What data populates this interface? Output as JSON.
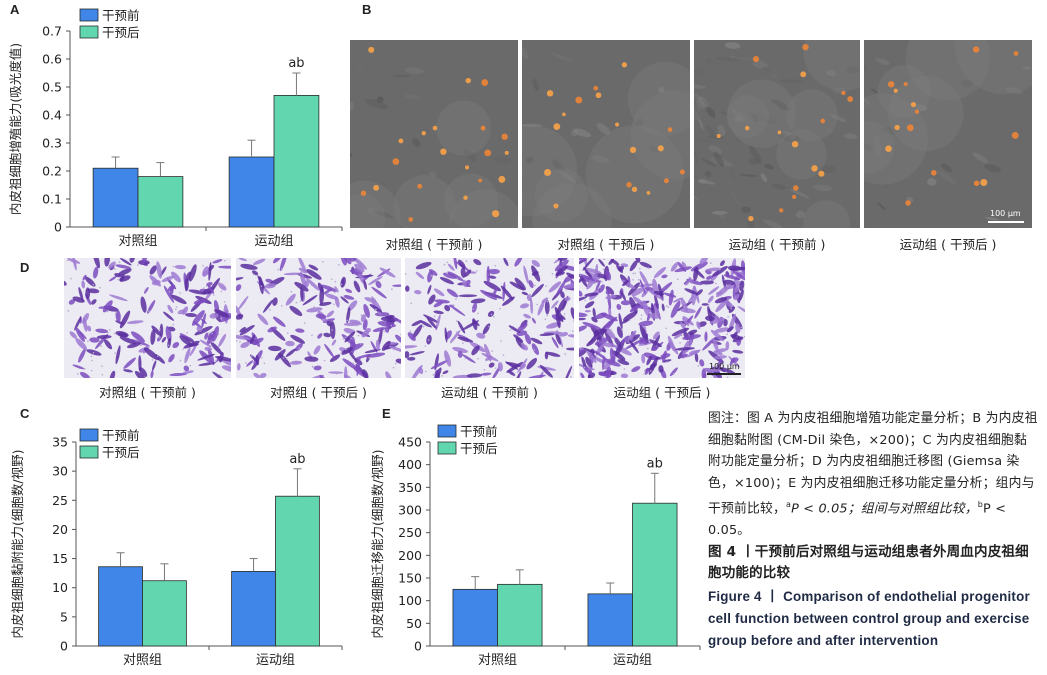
{
  "panels": {
    "a": {
      "letter": "A"
    },
    "b": {
      "letter": "B",
      "tiles": [
        {
          "label": "对照组 ( 干预前 )"
        },
        {
          "label": "对照组 ( 干预后 )"
        },
        {
          "label": "运动组 ( 干预前 )"
        },
        {
          "label": "运动组 ( 干预后 )"
        }
      ],
      "scale_bar": "100 μm"
    },
    "c": {
      "letter": "C"
    },
    "d": {
      "letter": "D",
      "tiles": [
        {
          "label": "对照组 ( 干预前 )"
        },
        {
          "label": "对照组 ( 干预后 )"
        },
        {
          "label": "运动组 ( 干预前 )"
        },
        {
          "label": "运动组 ( 干预后 )"
        }
      ],
      "scale_bar": "100 μm"
    },
    "e": {
      "letter": "E"
    }
  },
  "colors": {
    "before": "#3f86e8",
    "after": "#62d6ae",
    "bar_edge": "#2b2b2b",
    "axis": "#555555"
  },
  "chart_data": [
    {
      "id": "A",
      "type": "bar",
      "categories": [
        "对照组",
        "运动组"
      ],
      "series": [
        {
          "name": "干预前",
          "values": [
            0.21,
            0.25
          ],
          "errors": [
            0.04,
            0.06
          ]
        },
        {
          "name": "干预后",
          "values": [
            0.18,
            0.47
          ],
          "errors": [
            0.05,
            0.08
          ]
        }
      ],
      "ylabel": "内皮祖细胞增殖能力(吸光度值)",
      "ylim": [
        0,
        0.7
      ],
      "yticks": [
        "0",
        "0.1",
        "0.2",
        "0.3",
        "0.4",
        "0.5",
        "0.6",
        "0.7"
      ],
      "annotations": [
        {
          "category": "运动组",
          "series": "干预后",
          "text": "ab"
        }
      ],
      "legend": "top-left",
      "grid": false
    },
    {
      "id": "C",
      "type": "bar",
      "categories": [
        "对照组",
        "运动组"
      ],
      "series": [
        {
          "name": "干预前",
          "values": [
            13.6,
            12.8
          ],
          "errors": [
            2.4,
            2.2
          ]
        },
        {
          "name": "干预后",
          "values": [
            11.2,
            25.7
          ],
          "errors": [
            2.9,
            4.7
          ]
        }
      ],
      "ylabel": "内皮祖细胞黏附能力(细胞数/视野)",
      "ylim": [
        0,
        35
      ],
      "yticks": [
        "0",
        "5",
        "10",
        "15",
        "20",
        "25",
        "30",
        "35"
      ],
      "annotations": [
        {
          "category": "运动组",
          "series": "干预后",
          "text": "ab"
        }
      ],
      "legend": "top-left",
      "grid": false
    },
    {
      "id": "E",
      "type": "bar",
      "categories": [
        "对照组",
        "运动组"
      ],
      "series": [
        {
          "name": "干预前",
          "values": [
            125,
            115
          ],
          "errors": [
            28,
            24
          ]
        },
        {
          "name": "干预后",
          "values": [
            136,
            315
          ],
          "errors": [
            32,
            66
          ]
        }
      ],
      "ylabel": "内皮祖细胞迁移能力(细胞数/视野)",
      "ylim": [
        0,
        450
      ],
      "yticks": [
        "0",
        "50",
        "100",
        "150",
        "200",
        "250",
        "300",
        "350",
        "400",
        "450"
      ],
      "annotations": [
        {
          "category": "运动组",
          "series": "干预后",
          "text": "ab"
        }
      ],
      "legend": "top-left",
      "grid": false
    }
  ],
  "caption": {
    "note_parts": [
      {
        "text": "图注：图 A 为内皮祖细胞增殖功能定量分析；B 为内皮祖细胞黏附图 (CM-Dil 染色，×200)；C 为内皮祖细胞黏附功能定量分析；D 为内皮祖细胞迁移图 (Giemsa 染色，×100)；E 为内皮祖细胞迁移功能定量分析；组内与干预前比较，"
      },
      {
        "sup": "a"
      },
      {
        "text": "P < 0.05；组间与对照组比较，"
      },
      {
        "sup": "b"
      },
      {
        "text": "P < 0.05。"
      }
    ],
    "title_cn": "图 4 丨干预前后对照组与运动组患者外周血内皮祖细胞功能的比较",
    "title_en": "Figure 4 丨 Comparison of endothelial progenitor cell function between control group and exercise group before and after intervention"
  }
}
